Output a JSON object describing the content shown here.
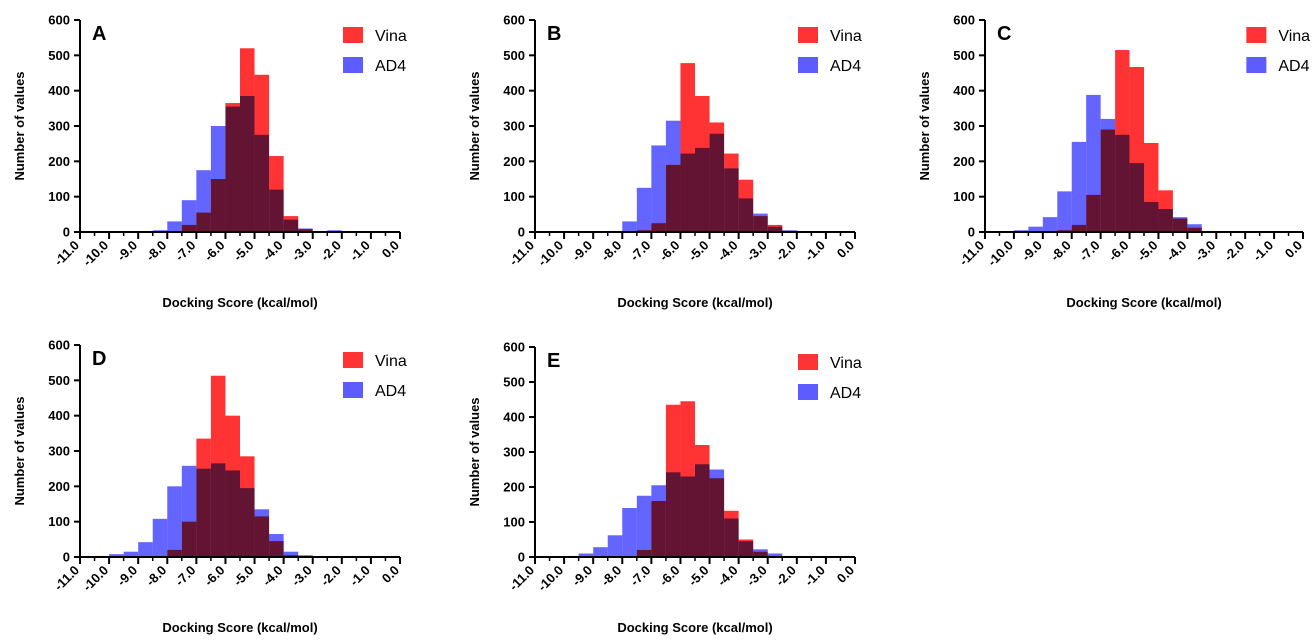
{
  "chart_data": [
    {
      "type": "bar",
      "panel_label": "A",
      "xlabel": "Docking Score (kcal/mol)",
      "ylabel": "Number of values",
      "xlim": [
        -11.0,
        0.0
      ],
      "ylim": [
        0,
        600
      ],
      "bin_width": 0.5,
      "bin_starts": [
        -11.0,
        -10.5,
        -10.0,
        -9.5,
        -9.0,
        -8.5,
        -8.0,
        -7.5,
        -7.0,
        -6.5,
        -6.0,
        -5.5,
        -5.0,
        -4.5,
        -4.0,
        -3.5,
        -3.0,
        -2.5,
        -2.0,
        -1.5,
        -1.0,
        -0.5
      ],
      "x_ticks": [
        "-11.0",
        "-10.0",
        "-9.0",
        "-8.0",
        "-7.0",
        "-6.0",
        "-5.0",
        "-4.0",
        "-3.0",
        "-2.0",
        "-1.0",
        "0.0"
      ],
      "y_ticks": [
        "0",
        "100",
        "200",
        "300",
        "400",
        "500",
        "600"
      ],
      "legend_position": "top-right",
      "series": [
        {
          "name": "Vina",
          "color": "#ff3333",
          "values": [
            0,
            0,
            0,
            0,
            0,
            0,
            2,
            20,
            55,
            150,
            365,
            520,
            445,
            215,
            45,
            8,
            0,
            0,
            0,
            0,
            0,
            0
          ]
        },
        {
          "name": "AD4",
          "color": "#5c5cff",
          "values": [
            0,
            0,
            0,
            0,
            0,
            5,
            30,
            90,
            175,
            300,
            355,
            385,
            275,
            120,
            35,
            10,
            3,
            5,
            0,
            0,
            0,
            0
          ]
        }
      ]
    },
    {
      "type": "bar",
      "panel_label": "B",
      "xlabel": "Docking Score (kcal/mol)",
      "ylabel": "Number of values",
      "xlim": [
        -11.0,
        0.0
      ],
      "ylim": [
        0,
        600
      ],
      "bin_width": 0.5,
      "bin_starts": [
        -11.0,
        -10.5,
        -10.0,
        -9.5,
        -9.0,
        -8.5,
        -8.0,
        -7.5,
        -7.0,
        -6.5,
        -6.0,
        -5.5,
        -5.0,
        -4.5,
        -4.0,
        -3.5,
        -3.0,
        -2.5,
        -2.0,
        -1.5,
        -1.0,
        -0.5
      ],
      "x_ticks": [
        "-11.0",
        "-10.0",
        "-9.0",
        "-8.0",
        "-7.0",
        "-6.0",
        "-5.0",
        "-4.0",
        "-3.0",
        "-2.0",
        "-1.0",
        "0.0"
      ],
      "y_ticks": [
        "0",
        "100",
        "200",
        "300",
        "400",
        "500",
        "600"
      ],
      "legend_position": "top-right",
      "series": [
        {
          "name": "Vina",
          "color": "#ff3333",
          "values": [
            0,
            0,
            0,
            0,
            0,
            0,
            0,
            5,
            25,
            190,
            478,
            385,
            310,
            222,
            148,
            45,
            20,
            0,
            0,
            0,
            0,
            0
          ]
        },
        {
          "name": "AD4",
          "color": "#5c5cff",
          "values": [
            0,
            0,
            0,
            0,
            0,
            3,
            30,
            125,
            245,
            315,
            222,
            238,
            278,
            180,
            95,
            52,
            15,
            5,
            2,
            0,
            0,
            0
          ]
        }
      ]
    },
    {
      "type": "bar",
      "panel_label": "C",
      "xlabel": "Docking Score (kcal/mol)",
      "ylabel": "Number of values",
      "xlim": [
        -11.0,
        0.0
      ],
      "ylim": [
        0,
        600
      ],
      "bin_width": 0.5,
      "bin_starts": [
        -11.0,
        -10.5,
        -10.0,
        -9.5,
        -9.0,
        -8.5,
        -8.0,
        -7.5,
        -7.0,
        -6.5,
        -6.0,
        -5.5,
        -5.0,
        -4.5,
        -4.0,
        -3.5,
        -3.0,
        -2.5,
        -2.0,
        -1.5,
        -1.0,
        -0.5
      ],
      "x_ticks": [
        "-11.0",
        "-10.0",
        "-9.0",
        "-8.0",
        "-7.0",
        "-6.0",
        "-5.0",
        "-4.0",
        "-3.0",
        "-2.0",
        "-1.0",
        "0.0"
      ],
      "y_ticks": [
        "0",
        "100",
        "200",
        "300",
        "400",
        "500",
        "600"
      ],
      "legend_position": "top-right",
      "series": [
        {
          "name": "Vina",
          "color": "#ff3333",
          "values": [
            0,
            0,
            0,
            0,
            0,
            5,
            20,
            105,
            290,
            515,
            467,
            252,
            118,
            38,
            12,
            0,
            0,
            0,
            0,
            0,
            0,
            0
          ]
        },
        {
          "name": "AD4",
          "color": "#5c5cff",
          "values": [
            0,
            0,
            5,
            15,
            42,
            115,
            255,
            388,
            320,
            275,
            195,
            85,
            65,
            42,
            22,
            3,
            0,
            0,
            0,
            0,
            0,
            0
          ]
        }
      ]
    },
    {
      "type": "bar",
      "panel_label": "D",
      "xlabel": "Docking Score (kcal/mol)",
      "ylabel": "Number of values",
      "xlim": [
        -11.0,
        0.0
      ],
      "ylim": [
        0,
        600
      ],
      "bin_width": 0.5,
      "bin_starts": [
        -11.0,
        -10.5,
        -10.0,
        -9.5,
        -9.0,
        -8.5,
        -8.0,
        -7.5,
        -7.0,
        -6.5,
        -6.0,
        -5.5,
        -5.0,
        -4.5,
        -4.0,
        -3.5,
        -3.0,
        -2.5,
        -2.0,
        -1.5,
        -1.0,
        -0.5
      ],
      "x_ticks": [
        "-11.0",
        "-10.0",
        "-9.0",
        "-8.0",
        "-7.0",
        "-6.0",
        "-5.0",
        "-4.0",
        "-3.0",
        "-2.0",
        "-1.0",
        "0.0"
      ],
      "y_ticks": [
        "0",
        "100",
        "200",
        "300",
        "400",
        "500",
        "600"
      ],
      "legend_position": "top-right",
      "series": [
        {
          "name": "Vina",
          "color": "#ff3333",
          "values": [
            0,
            0,
            0,
            0,
            0,
            0,
            20,
            100,
            335,
            513,
            400,
            285,
            115,
            45,
            5,
            0,
            0,
            0,
            0,
            0,
            0,
            0
          ]
        },
        {
          "name": "AD4",
          "color": "#5c5cff",
          "values": [
            0,
            3,
            8,
            15,
            42,
            108,
            200,
            258,
            250,
            265,
            245,
            195,
            135,
            65,
            15,
            5,
            2,
            0,
            0,
            0,
            0,
            0
          ]
        }
      ]
    },
    {
      "type": "bar",
      "panel_label": "E",
      "xlabel": "Docking Score (kcal/mol)",
      "ylabel": "Number of values",
      "xlim": [
        -11.0,
        0.0
      ],
      "ylim": [
        0,
        600
      ],
      "bin_width": 0.5,
      "bin_starts": [
        -11.0,
        -10.5,
        -10.0,
        -9.5,
        -9.0,
        -8.5,
        -8.0,
        -7.5,
        -7.0,
        -6.5,
        -6.0,
        -5.5,
        -5.0,
        -4.5,
        -4.0,
        -3.5,
        -3.0,
        -2.5,
        -2.0,
        -1.5,
        -1.0,
        -0.5
      ],
      "x_ticks": [
        "-11.0",
        "-10.0",
        "-9.0",
        "-8.0",
        "-7.0",
        "-6.0",
        "-5.0",
        "-4.0",
        "-3.0",
        "-2.0",
        "-1.0",
        "0.0"
      ],
      "y_ticks": [
        "0",
        "100",
        "200",
        "300",
        "400",
        "500",
        "600"
      ],
      "legend_position": "top-right",
      "series": [
        {
          "name": "Vina",
          "color": "#ff3333",
          "values": [
            0,
            0,
            0,
            0,
            0,
            0,
            0,
            20,
            160,
            435,
            445,
            320,
            225,
            132,
            50,
            15,
            0,
            0,
            0,
            0,
            0,
            0
          ]
        },
        {
          "name": "AD4",
          "color": "#5c5cff",
          "values": [
            0,
            0,
            3,
            10,
            28,
            62,
            140,
            175,
            205,
            242,
            230,
            265,
            250,
            110,
            45,
            22,
            10,
            3,
            0,
            0,
            0,
            0
          ]
        }
      ]
    }
  ]
}
